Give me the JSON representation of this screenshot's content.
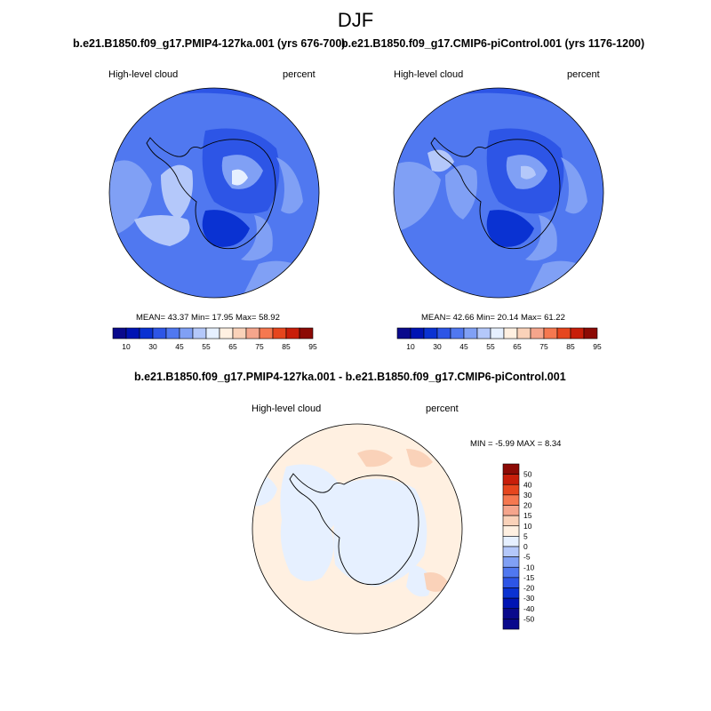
{
  "season": "DJF",
  "variable": "High-level cloud",
  "units": "percent",
  "panels": [
    {
      "id": "test",
      "title": "b.e21.B1850.f09_g17.PMIP4-127ka.001 (yrs 676-700)",
      "stats": "MEAN=  43.37  Min=  17.95  Max=  58.92"
    },
    {
      "id": "control",
      "title": "b.e21.B1850.f09_g17.CMIP6-piControl.001 (yrs 1176-1200)",
      "stats": "MEAN=  42.66  Min=  20.14  Max=  61.22"
    }
  ],
  "diff_panel": {
    "title": "b.e21.B1850.f09_g17.PMIP4-127ka.001 - b.e21.B1850.f09_g17.CMIP6-piControl.001",
    "stats": "MIN =  -5.99 MAX =   8.34"
  },
  "colorbar_abs": {
    "colors": [
      "#0a0a8c",
      "#0014b4",
      "#0a32d2",
      "#2d55e6",
      "#5078f0",
      "#80a0f5",
      "#b4c8fa",
      "#e6f0ff",
      "#fff0e1",
      "#fad2b9",
      "#f5a58c",
      "#f57850",
      "#e6461e",
      "#c81e0a",
      "#8c0a05"
    ],
    "tick_labels": [
      "10",
      "30",
      "45",
      "55",
      "65",
      "75",
      "85",
      "95"
    ]
  },
  "colorbar_diff": {
    "colors": [
      "#8c0a05",
      "#c81e0a",
      "#e6461e",
      "#f57850",
      "#f5a58c",
      "#fad2b9",
      "#fff0e1",
      "#e6f0ff",
      "#b4c8fa",
      "#80a0f5",
      "#5078f0",
      "#2d55e6",
      "#0a32d2",
      "#0014b4",
      "#0a0a8c"
    ],
    "tick_labels": [
      "50",
      "40",
      "30",
      "20",
      "15",
      "10",
      "5",
      "0",
      "-5",
      "-10",
      "-15",
      "-20",
      "-30",
      "-40",
      "-50"
    ]
  },
  "chart_data": [
    {
      "type": "heatmap",
      "title": "b.e21.B1850.f09_g17.PMIP4-127ka.001 (yrs 676-700)",
      "variable": "High-level cloud",
      "units": "percent",
      "projection": "south polar stereographic",
      "mean": 43.37,
      "min": 17.95,
      "max": 58.92,
      "contour_levels": [
        10,
        20,
        30,
        40,
        45,
        50,
        55,
        60,
        65,
        70,
        75,
        80,
        85,
        90,
        95
      ]
    },
    {
      "type": "heatmap",
      "title": "b.e21.B1850.f09_g17.CMIP6-piControl.001 (yrs 1176-1200)",
      "variable": "High-level cloud",
      "units": "percent",
      "projection": "south polar stereographic",
      "mean": 42.66,
      "min": 20.14,
      "max": 61.22,
      "contour_levels": [
        10,
        20,
        30,
        40,
        45,
        50,
        55,
        60,
        65,
        70,
        75,
        80,
        85,
        90,
        95
      ]
    },
    {
      "type": "heatmap",
      "title": "b.e21.B1850.f09_g17.PMIP4-127ka.001 - b.e21.B1850.f09_g17.CMIP6-piControl.001",
      "variable": "High-level cloud",
      "units": "percent",
      "projection": "south polar stereographic",
      "min": -5.99,
      "max": 8.34,
      "contour_levels": [
        -50,
        -40,
        -30,
        -20,
        -15,
        -10,
        -5,
        0,
        5,
        10,
        15,
        20,
        30,
        40,
        50
      ]
    }
  ]
}
